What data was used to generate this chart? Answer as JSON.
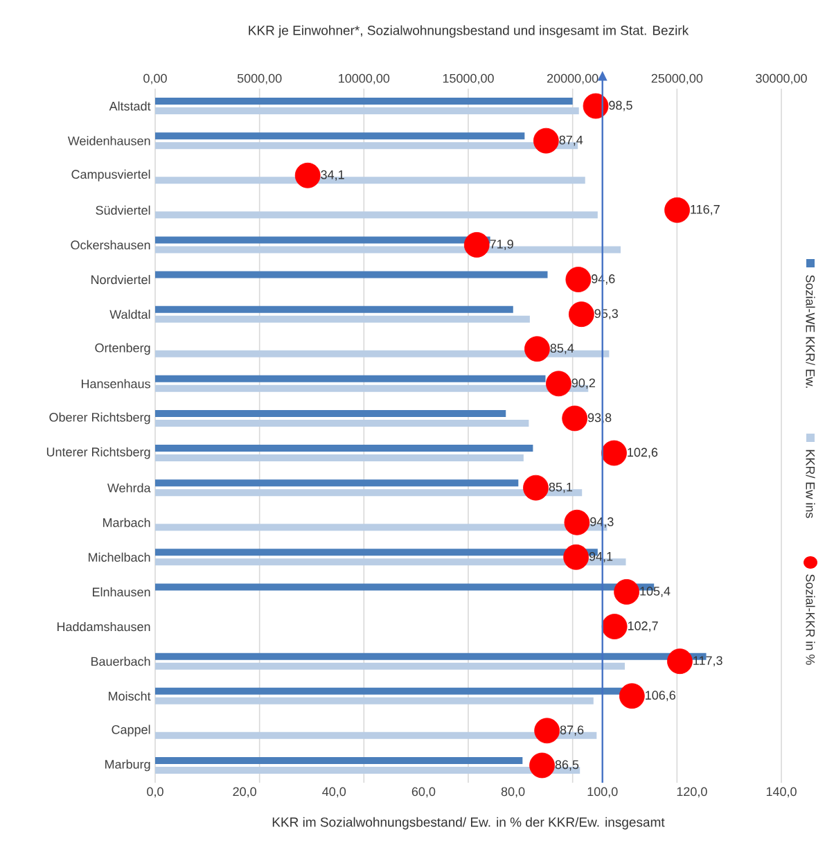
{
  "chart_data": {
    "type": "bar",
    "orientation": "horizontal",
    "x2label": "KKR je Einwohner*, Sozialwohnungsbestand und insgesamt im Stat. Bezirk",
    "xlabel": "KKR im Sozialwohnungsbestand/ Ew. in % der KKR/Ew. insgesamt",
    "categories": [
      "Altstadt",
      "Weidenhausen",
      "Campusviertel",
      "Südviertel",
      "Ockershausen",
      "Nordviertel",
      "Waldtal",
      "Ortenberg",
      "Hansenhaus",
      "Oberer Richtsberg",
      "Unterer Richtsberg",
      "Wehrda",
      "Marbach",
      "Michelbach",
      "Elnhausen",
      "Haddamshausen",
      "Bauerbach",
      "Moischt",
      "Cappel",
      "Marburg"
    ],
    "series": [
      {
        "name": "Sozial-WE KKR/ Ew.",
        "color": "#4a7ebb",
        "axis": "x2",
        "values": [
          20000,
          17700,
          null,
          null,
          16050,
          18800,
          17150,
          null,
          18700,
          16800,
          18100,
          17400,
          null,
          21200,
          23900,
          null,
          26400,
          22400,
          null,
          17600
        ]
      },
      {
        "name": "KKR/ Ew ins",
        "color": "#b9cde5",
        "axis": "x2",
        "values": [
          20300,
          20250,
          20600,
          21200,
          22300,
          null,
          17950,
          21750,
          20750,
          17900,
          17650,
          20450,
          21650,
          22550,
          null,
          null,
          22500,
          21000,
          21150,
          20350
        ]
      },
      {
        "name": "Sozial-KKR in %",
        "color": "#ff0000",
        "type": "scatter",
        "values": [
          98.5,
          87.4,
          34.1,
          116.7,
          71.9,
          94.6,
          95.3,
          85.4,
          90.2,
          93.8,
          102.6,
          85.1,
          94.3,
          94.1,
          105.4,
          102.7,
          117.3,
          106.6,
          87.6,
          86.5
        ],
        "value_labels": [
          "98,5",
          "87,4",
          "34,1",
          "116,7",
          "71,9",
          "94,6",
          "95,3",
          "85,4",
          "90,2",
          "93,8",
          "102,6",
          "85,1",
          "94,3",
          "94,1",
          "105,4",
          "102,7",
          "117,3",
          "106,6",
          "87,6",
          "86,5"
        ]
      }
    ],
    "xlim": [
      0,
      140
    ],
    "xticks": [
      {
        "value": 0,
        "label": "0,0"
      },
      {
        "value": 20,
        "label": "20,0"
      },
      {
        "value": 40,
        "label": "40,0"
      },
      {
        "value": 60,
        "label": "60,0"
      },
      {
        "value": 80,
        "label": "80,0"
      },
      {
        "value": 100,
        "label": "100,0"
      },
      {
        "value": 120,
        "label": "120,0"
      },
      {
        "value": 140,
        "label": "140,0"
      }
    ],
    "x2lim": [
      0,
      30000
    ],
    "x2ticks": [
      {
        "value": 0,
        "label": "0,00"
      },
      {
        "value": 5000,
        "label": "5000,00"
      },
      {
        "value": 10000,
        "label": "10000,00"
      },
      {
        "value": 15000,
        "label": "15000,00"
      },
      {
        "value": 20000,
        "label": "20000,00"
      },
      {
        "value": 25000,
        "label": "25000,00"
      },
      {
        "value": 30000,
        "label": "30000,00"
      }
    ],
    "grid": "x2",
    "ref_lines": [
      {
        "axis": "x",
        "value": 100,
        "color": "#4472c4"
      }
    ],
    "legend": "right"
  }
}
